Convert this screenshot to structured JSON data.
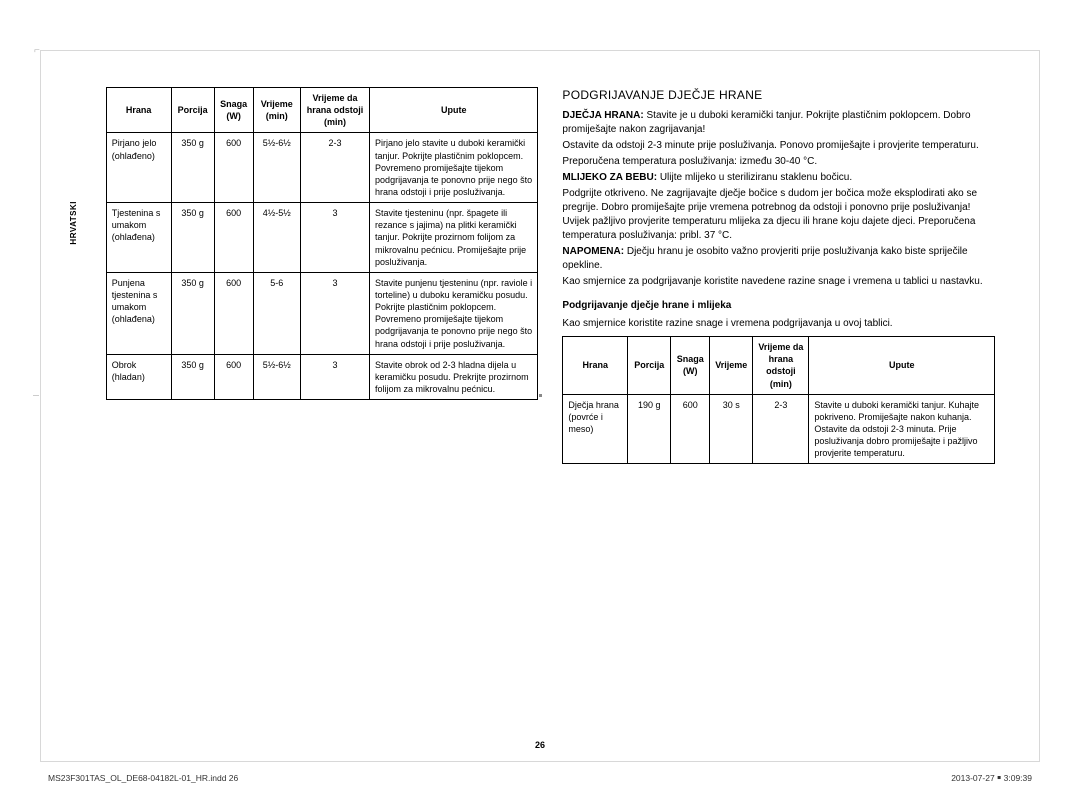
{
  "side_tab": "HRVATSKI",
  "table1": {
    "headers": [
      "Hrana",
      "Porcija",
      "Snaga (W)",
      "Vrijeme (min)",
      "Vrijeme da hrana odstoji (min)",
      "Upute"
    ],
    "col_widths": [
      "15%",
      "10%",
      "9%",
      "11%",
      "16%",
      "39%"
    ],
    "rows": [
      {
        "hrana": "Pirjano jelo (ohlađeno)",
        "porcija": "350 g",
        "snaga": "600",
        "vrijeme": "5½-6½",
        "odstoji": "2-3",
        "upute": "Pirjano jelo stavite u duboki keramički tanjur. Pokrijte plastičnim poklopcem. Povremeno promiješajte tijekom podgrijavanja te ponovno prije nego što hrana odstoji i prije posluživanja."
      },
      {
        "hrana": "Tjestenina s umakom (ohlađena)",
        "porcija": "350 g",
        "snaga": "600",
        "vrijeme": "4½-5½",
        "odstoji": "3",
        "upute": "Stavite tjesteninu (npr. špagete ili rezance s jajima) na plitki keramički tanjur. Pokrijte prozirnom folijom za mikrovalnu pećnicu. Promiješajte prije posluživanja."
      },
      {
        "hrana": "Punjena tjestenina s umakom (ohlađena)",
        "porcija": "350 g",
        "snaga": "600",
        "vrijeme": "5-6",
        "odstoji": "3",
        "upute": "Stavite punjenu tjesteninu (npr. raviole i torteline) u duboku keramičku posudu. Pokrijte plastičnim poklopcem. Povremeno promiješajte tijekom podgrijavanja te ponovno prije nego što hrana odstoji i prije posluživanja."
      },
      {
        "hrana": "Obrok (hladan)",
        "porcija": "350 g",
        "snaga": "600",
        "vrijeme": "5½-6½",
        "odstoji": "3",
        "upute": "Stavite obrok od 2-3 hladna dijela u keramičku posudu. Prekrijte prozirnom folijom za mikrovalnu pećnicu."
      }
    ]
  },
  "right": {
    "heading": "PODGRIJAVANJE DJEČJE HRANE",
    "paragraphs": [
      {
        "lead": "DJEČJA HRANA:",
        "text": " Stavite je u duboki keramički tanjur. Pokrijte plastičnim poklopcem. Dobro promiješajte nakon zagrijavanja!"
      },
      {
        "text": "Ostavite da odstoji 2-3 minute prije posluživanja. Ponovo promiješajte i provjerite temperaturu."
      },
      {
        "text": "Preporučena temperatura posluživanja: između 30-40 °C."
      },
      {
        "lead": "MLIJEKO ZA BEBU:",
        "text": " Ulijte mlijeko u steriliziranu staklenu bočicu."
      },
      {
        "text": "Podgrijte otkriveno. Ne zagrijavajte dječje bočice s dudom jer bočica može eksplodirati ako se pregrije. Dobro promiješajte prije vremena potrebnog da odstoji i ponovno prije posluživanja! Uvijek pažljivo provjerite temperaturu mlijeka za djecu ili hrane koju dajete djeci. Preporučena temperatura posluživanja: pribl. 37 °C."
      },
      {
        "lead": "NAPOMENA:",
        "text": " Dječju hranu je osobito važno provjeriti prije posluživanja kako biste spriječile opekline."
      },
      {
        "text": "Kao smjernice za podgrijavanje koristite navedene razine snage i vremena u tablici u nastavku."
      }
    ],
    "subhead": "Podgrijavanje dječje hrane i mlijeka",
    "subtext": "Kao smjernice koristite razine snage i vremena podgrijavanja u ovoj tablici.",
    "table2": {
      "headers": [
        "Hrana",
        "Porcija",
        "Snaga (W)",
        "Vrijeme",
        "Vrijeme da hrana odstoji (min)",
        "Upute"
      ],
      "col_widths": [
        "15%",
        "10%",
        "9%",
        "10%",
        "13%",
        "43%"
      ],
      "rows": [
        {
          "hrana": "Dječja hrana (povrće i meso)",
          "porcija": "190 g",
          "snaga": "600",
          "vrijeme": "30 s",
          "odstoji": "2-3",
          "upute": "Stavite u duboki keramički tanjur. Kuhajte pokriveno. Promiješajte nakon kuhanja. Ostavite da odstoji 2-3 minuta. Prije posluživanja dobro promiješajte i pažljivo provjerite temperaturu."
        }
      ]
    }
  },
  "page_number": "26",
  "footer_left": "MS23F301TAS_OL_DE68-04182L-01_HR.indd   26",
  "footer_right": "2013-07-27   ￭ 3:09:39"
}
